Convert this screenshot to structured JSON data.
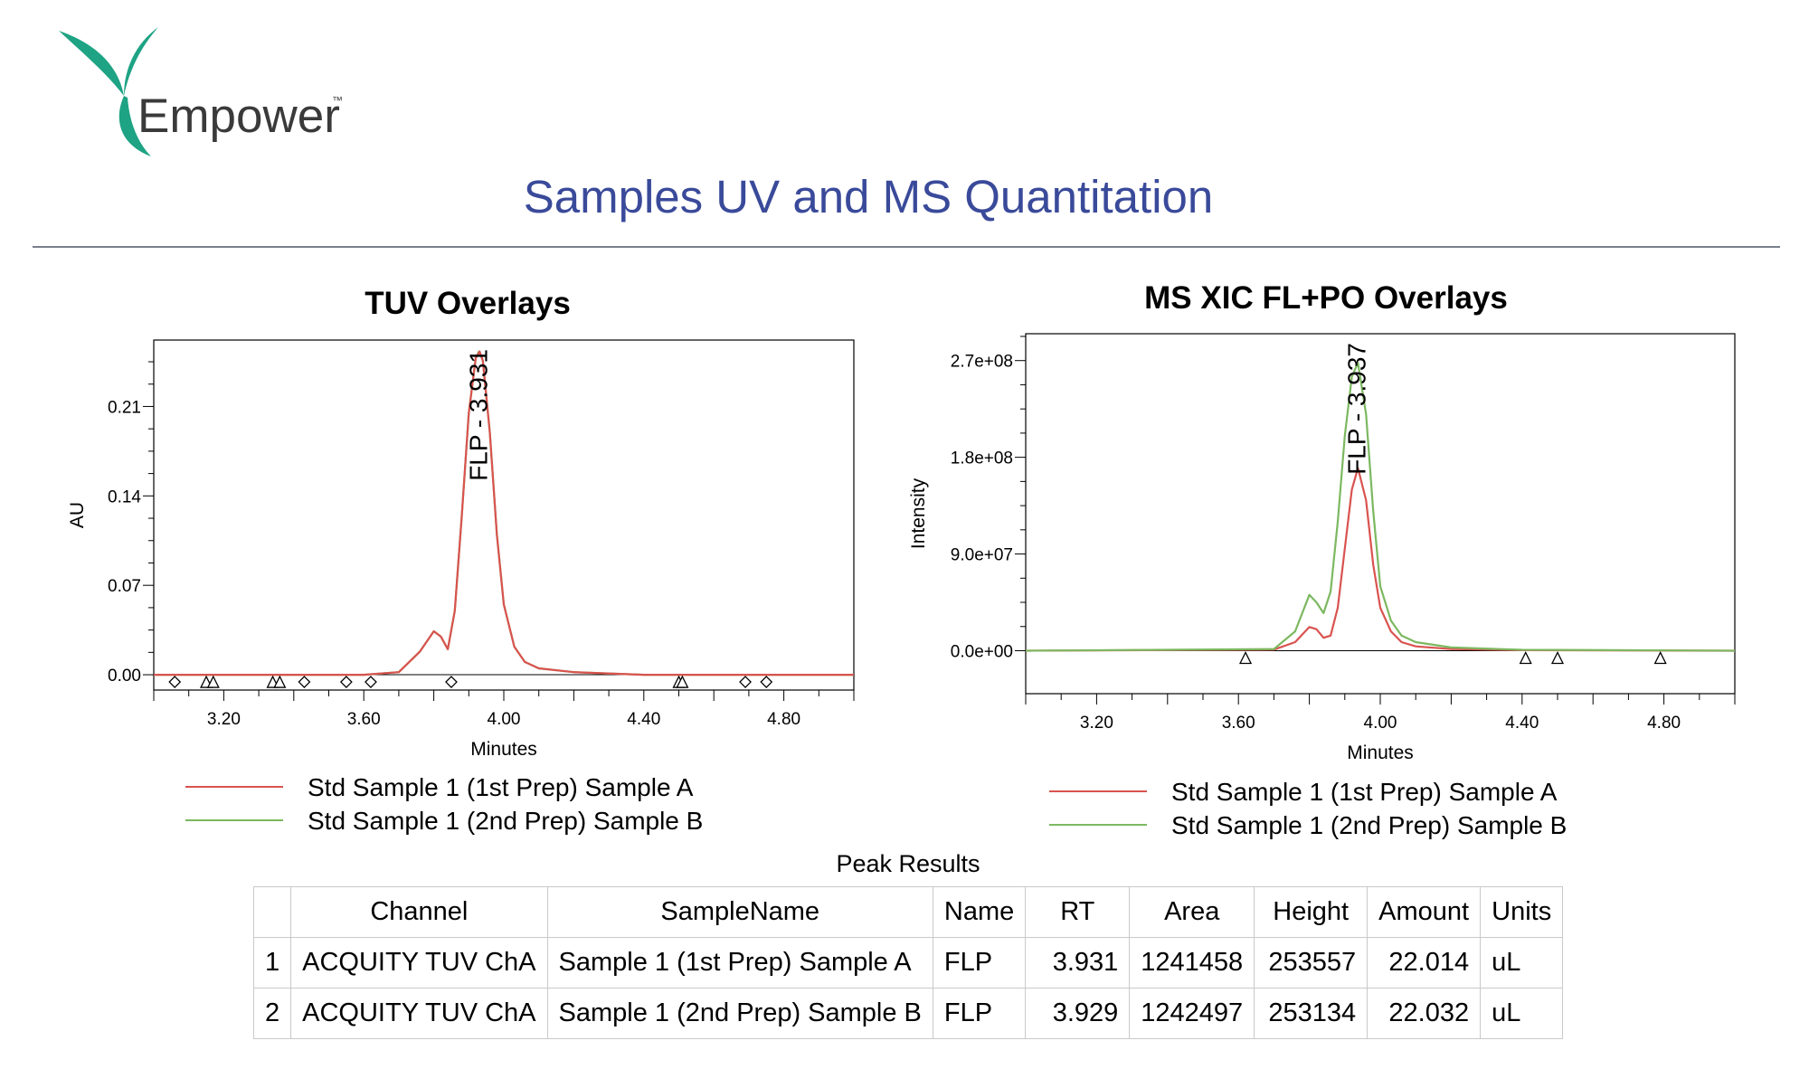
{
  "header": {
    "brand": "Empower",
    "trademark": "™",
    "title": "Samples UV and MS Quantitation"
  },
  "colors": {
    "series_a": "#d9534f",
    "series_b": "#7cb860",
    "title": "#3a4a9a"
  },
  "chart_data": [
    {
      "type": "line",
      "title": "TUV Overlays",
      "xlabel": "Minutes",
      "ylabel": "AU",
      "xlim": [
        3.0,
        5.0
      ],
      "ylim": [
        -0.012,
        0.262
      ],
      "xticks": [
        "3.20",
        "3.60",
        "4.00",
        "4.40",
        "4.80"
      ],
      "yticks": [
        "0.00",
        "0.07",
        "0.14",
        "0.21"
      ],
      "peak_annotations": [
        {
          "text": "FLP - 3.931",
          "x": 3.931
        }
      ],
      "series": [
        {
          "name": "Std Sample 1 (1st Prep) Sample A",
          "color": "#d9534f",
          "x": [
            3.0,
            3.6,
            3.7,
            3.76,
            3.8,
            3.82,
            3.84,
            3.86,
            3.88,
            3.9,
            3.92,
            3.931,
            3.94,
            3.96,
            3.98,
            4.0,
            4.03,
            4.06,
            4.1,
            4.2,
            4.4,
            5.0
          ],
          "y": [
            0.0,
            0.0,
            0.002,
            0.018,
            0.034,
            0.03,
            0.02,
            0.05,
            0.125,
            0.205,
            0.248,
            0.253,
            0.246,
            0.19,
            0.11,
            0.055,
            0.022,
            0.01,
            0.005,
            0.002,
            0.0,
            0.0
          ]
        },
        {
          "name": "Std Sample 1 (2nd Prep) Sample B",
          "color": "#7cb860",
          "x": [
            3.0,
            3.6,
            3.7,
            3.76,
            3.8,
            3.82,
            3.84,
            3.86,
            3.88,
            3.9,
            3.92,
            3.929,
            3.94,
            3.96,
            3.98,
            4.0,
            4.03,
            4.06,
            4.1,
            4.2,
            4.4,
            5.0
          ],
          "y": [
            0.0,
            0.0,
            0.002,
            0.018,
            0.034,
            0.03,
            0.02,
            0.05,
            0.125,
            0.205,
            0.248,
            0.253,
            0.246,
            0.19,
            0.11,
            0.055,
            0.022,
            0.01,
            0.005,
            0.002,
            0.0,
            0.0
          ]
        }
      ],
      "diamond_markers_x": [
        3.06,
        3.43,
        3.55,
        3.62,
        3.85,
        4.69,
        4.75
      ],
      "triangle_markers_x": [
        3.15,
        3.17,
        3.34,
        3.36,
        4.5,
        4.51
      ]
    },
    {
      "type": "line",
      "title": "MS XIC FL+PO Overlays",
      "xlabel": "Minutes",
      "ylabel": "Intensity",
      "xlim": [
        3.0,
        5.0
      ],
      "ylim": [
        -40000000,
        295000000
      ],
      "xticks": [
        "3.20",
        "3.60",
        "4.00",
        "4.40",
        "4.80"
      ],
      "yticks": [
        "0.0e+00",
        "9.0e+07",
        "1.8e+08",
        "2.7e+08"
      ],
      "peak_annotations": [
        {
          "text": "FLP - 3.937",
          "x": 3.937
        }
      ],
      "series": [
        {
          "name": "Std Sample 1 (1st Prep) Sample A",
          "color": "#d9534f",
          "x": [
            3.0,
            3.7,
            3.76,
            3.8,
            3.82,
            3.84,
            3.86,
            3.88,
            3.9,
            3.92,
            3.937,
            3.96,
            3.98,
            4.0,
            4.03,
            4.06,
            4.1,
            4.2,
            4.4,
            5.0
          ],
          "y": [
            0,
            1000000,
            8000000,
            22000000,
            20000000,
            12000000,
            14000000,
            40000000,
            95000000,
            150000000,
            170000000,
            140000000,
            80000000,
            40000000,
            18000000,
            8000000,
            4000000,
            1500000,
            500000,
            0
          ]
        },
        {
          "name": "Std Sample 1 (2nd Prep) Sample B",
          "color": "#7cb860",
          "x": [
            3.0,
            3.7,
            3.76,
            3.8,
            3.82,
            3.84,
            3.86,
            3.88,
            3.9,
            3.92,
            3.937,
            3.96,
            3.98,
            4.0,
            4.03,
            4.06,
            4.1,
            4.2,
            4.4,
            5.0
          ],
          "y": [
            0,
            1500000,
            18000000,
            52000000,
            45000000,
            35000000,
            55000000,
            120000000,
            200000000,
            255000000,
            268000000,
            220000000,
            130000000,
            60000000,
            28000000,
            14000000,
            8000000,
            3000000,
            800000,
            0
          ]
        }
      ],
      "triangle_markers_x": [
        3.62,
        4.41,
        4.5,
        4.79
      ]
    }
  ],
  "peak_results": {
    "title": "Peak Results",
    "columns": [
      "",
      "Channel",
      "SampleName",
      "Name",
      "RT",
      "Area",
      "Height",
      "Amount",
      "Units"
    ],
    "rows": [
      [
        "1",
        "ACQUITY TUV ChA",
        "Sample 1 (1st Prep) Sample A",
        "FLP",
        "3.931",
        "1241458",
        "253557",
        "22.014",
        "uL"
      ],
      [
        "2",
        "ACQUITY TUV ChA",
        "Sample 1 (2nd Prep) Sample B",
        "FLP",
        "3.929",
        "1242497",
        "253134",
        "22.032",
        "uL"
      ]
    ]
  }
}
